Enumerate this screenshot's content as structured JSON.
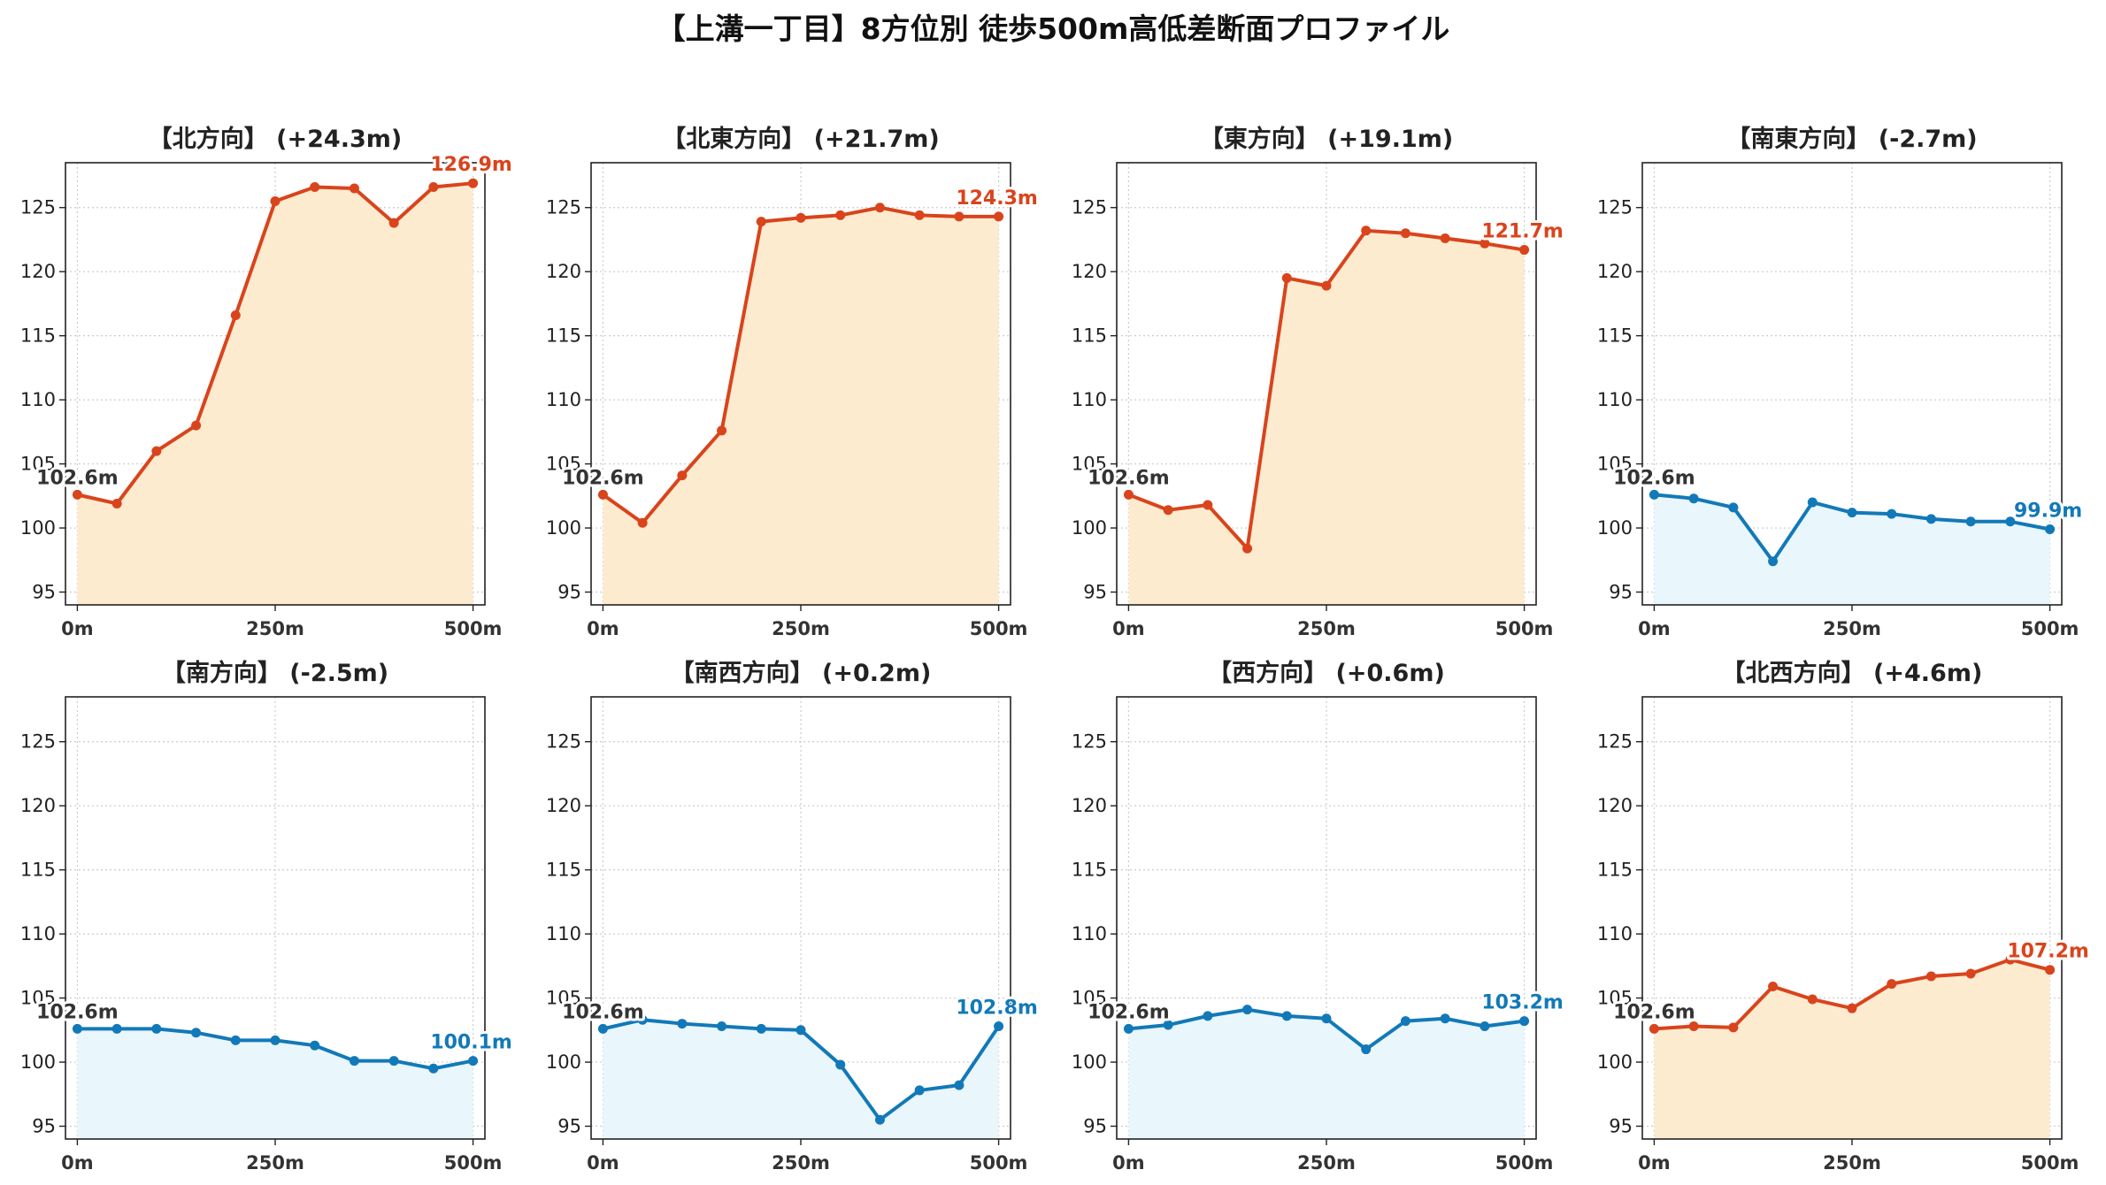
{
  "title": "【上溝一丁目】8方位別 徒歩500m高低差断面プロファイル",
  "colors": {
    "up_line": "#d9441c",
    "up_fill": "#fdebd0",
    "down_line": "#1279b8",
    "down_fill": "#e9f6fc",
    "start_label": "#333333",
    "grid": "#cccccc"
  },
  "chart_data": [
    {
      "type": "area",
      "title": "【北方向】 (+24.3m)",
      "trend": "up",
      "x": [
        0,
        50,
        100,
        150,
        200,
        250,
        300,
        350,
        400,
        450,
        500
      ],
      "values": [
        102.6,
        101.9,
        106.0,
        108.0,
        116.6,
        125.5,
        126.6,
        126.5,
        123.8,
        126.6,
        126.9
      ],
      "start_label": "102.6m",
      "end_label": "126.9m",
      "xticks": [
        0,
        250,
        500
      ],
      "xtick_labels": [
        "0m",
        "250m",
        "500m"
      ],
      "yticks": [
        95,
        100,
        105,
        110,
        115,
        120,
        125
      ],
      "ylim": [
        94,
        128.5
      ],
      "xlim": [
        -15,
        515
      ],
      "grid": true
    },
    {
      "type": "area",
      "title": "【北東方向】 (+21.7m)",
      "trend": "up",
      "x": [
        0,
        50,
        100,
        150,
        200,
        250,
        300,
        350,
        400,
        450,
        500
      ],
      "values": [
        102.6,
        100.4,
        104.1,
        107.6,
        123.9,
        124.2,
        124.4,
        125.0,
        124.4,
        124.3,
        124.3
      ],
      "start_label": "102.6m",
      "end_label": "124.3m",
      "xticks": [
        0,
        250,
        500
      ],
      "xtick_labels": [
        "0m",
        "250m",
        "500m"
      ],
      "yticks": [
        95,
        100,
        105,
        110,
        115,
        120,
        125
      ],
      "ylim": [
        94,
        128.5
      ],
      "xlim": [
        -15,
        515
      ],
      "grid": true
    },
    {
      "type": "area",
      "title": "【東方向】 (+19.1m)",
      "trend": "up",
      "x": [
        0,
        50,
        100,
        150,
        200,
        250,
        300,
        350,
        400,
        450,
        500
      ],
      "values": [
        102.6,
        101.4,
        101.8,
        98.4,
        119.5,
        118.9,
        123.2,
        123.0,
        122.6,
        122.2,
        121.7
      ],
      "start_label": "102.6m",
      "end_label": "121.7m",
      "xticks": [
        0,
        250,
        500
      ],
      "xtick_labels": [
        "0m",
        "250m",
        "500m"
      ],
      "yticks": [
        95,
        100,
        105,
        110,
        115,
        120,
        125
      ],
      "ylim": [
        94,
        128.5
      ],
      "xlim": [
        -15,
        515
      ],
      "grid": true
    },
    {
      "type": "area",
      "title": "【南東方向】 (-2.7m)",
      "trend": "down",
      "x": [
        0,
        50,
        100,
        150,
        200,
        250,
        300,
        350,
        400,
        450,
        500
      ],
      "values": [
        102.6,
        102.3,
        101.6,
        97.4,
        102.0,
        101.2,
        101.1,
        100.7,
        100.5,
        100.5,
        99.9
      ],
      "start_label": "102.6m",
      "end_label": "99.9m",
      "xticks": [
        0,
        250,
        500
      ],
      "xtick_labels": [
        "0m",
        "250m",
        "500m"
      ],
      "yticks": [
        95,
        100,
        105,
        110,
        115,
        120,
        125
      ],
      "ylim": [
        94,
        128.5
      ],
      "xlim": [
        -15,
        515
      ],
      "grid": true
    },
    {
      "type": "area",
      "title": "【南方向】 (-2.5m)",
      "trend": "down",
      "x": [
        0,
        50,
        100,
        150,
        200,
        250,
        300,
        350,
        400,
        450,
        500
      ],
      "values": [
        102.6,
        102.6,
        102.6,
        102.3,
        101.7,
        101.7,
        101.3,
        100.1,
        100.1,
        99.5,
        100.1
      ],
      "start_label": "102.6m",
      "end_label": "100.1m",
      "xticks": [
        0,
        250,
        500
      ],
      "xtick_labels": [
        "0m",
        "250m",
        "500m"
      ],
      "yticks": [
        95,
        100,
        105,
        110,
        115,
        120,
        125
      ],
      "ylim": [
        94,
        128.5
      ],
      "xlim": [
        -15,
        515
      ],
      "grid": true
    },
    {
      "type": "area",
      "title": "【南西方向】 (+0.2m)",
      "trend": "down",
      "x": [
        0,
        50,
        100,
        150,
        200,
        250,
        300,
        350,
        400,
        450,
        500
      ],
      "values": [
        102.6,
        103.3,
        103.0,
        102.8,
        102.6,
        102.5,
        99.8,
        95.5,
        97.8,
        98.2,
        102.8
      ],
      "start_label": "102.6m",
      "end_label": "102.8m",
      "xticks": [
        0,
        250,
        500
      ],
      "xtick_labels": [
        "0m",
        "250m",
        "500m"
      ],
      "yticks": [
        95,
        100,
        105,
        110,
        115,
        120,
        125
      ],
      "ylim": [
        94,
        128.5
      ],
      "xlim": [
        -15,
        515
      ],
      "grid": true
    },
    {
      "type": "area",
      "title": "【西方向】 (+0.6m)",
      "trend": "down",
      "x": [
        0,
        50,
        100,
        150,
        200,
        250,
        300,
        350,
        400,
        450,
        500
      ],
      "values": [
        102.6,
        102.9,
        103.6,
        104.1,
        103.6,
        103.4,
        101.0,
        103.2,
        103.4,
        102.8,
        103.2
      ],
      "start_label": "102.6m",
      "end_label": "103.2m",
      "xticks": [
        0,
        250,
        500
      ],
      "xtick_labels": [
        "0m",
        "250m",
        "500m"
      ],
      "yticks": [
        95,
        100,
        105,
        110,
        115,
        120,
        125
      ],
      "ylim": [
        94,
        128.5
      ],
      "xlim": [
        -15,
        515
      ],
      "grid": true
    },
    {
      "type": "area",
      "title": "【北西方向】 (+4.6m)",
      "trend": "up",
      "x": [
        0,
        50,
        100,
        150,
        200,
        250,
        300,
        350,
        400,
        450,
        500
      ],
      "values": [
        102.6,
        102.8,
        102.7,
        105.9,
        104.9,
        104.2,
        106.1,
        106.7,
        106.9,
        108.0,
        107.2
      ],
      "start_label": "102.6m",
      "end_label": "107.2m",
      "xticks": [
        0,
        250,
        500
      ],
      "xtick_labels": [
        "0m",
        "250m",
        "500m"
      ],
      "yticks": [
        95,
        100,
        105,
        110,
        115,
        120,
        125
      ],
      "ylim": [
        94,
        128.5
      ],
      "xlim": [
        -15,
        515
      ],
      "grid": true
    }
  ]
}
